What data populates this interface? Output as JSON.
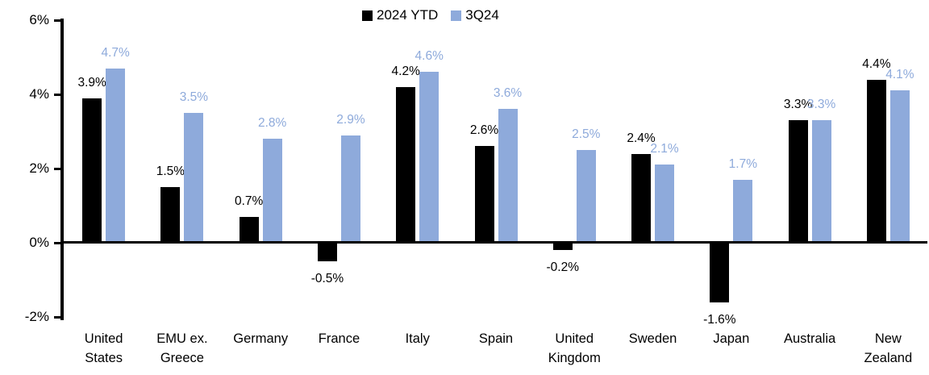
{
  "chart_data": {
    "type": "bar",
    "title": "",
    "xlabel": "",
    "ylabel": "",
    "categories": [
      "United States",
      "EMU ex. Greece",
      "Germany",
      "France",
      "Italy",
      "Spain",
      "United Kingdom",
      "Sweden",
      "Japan",
      "Australia",
      "New Zealand"
    ],
    "series": [
      {
        "name": "2024 YTD",
        "color": "#000000",
        "values": [
          3.9,
          1.5,
          0.7,
          -0.5,
          4.2,
          2.6,
          -0.2,
          2.4,
          -1.6,
          3.3,
          4.4
        ],
        "labels": [
          "3.9%",
          "1.5%",
          "0.7%",
          "-0.5%",
          "4.2%",
          "2.6%",
          "-0.2%",
          "2.4%",
          "-1.6%",
          "3.3%",
          "4.4%"
        ]
      },
      {
        "name": "3Q24",
        "color": "#8EAADB",
        "values": [
          4.7,
          3.5,
          2.8,
          2.9,
          4.6,
          3.6,
          2.5,
          2.1,
          1.7,
          3.3,
          4.1
        ],
        "labels": [
          "4.7%",
          "3.5%",
          "2.8%",
          "2.9%",
          "4.6%",
          "3.6%",
          "2.5%",
          "2.1%",
          "1.7%",
          "3.3%",
          "4.1%"
        ]
      }
    ],
    "ylim": [
      -2,
      6
    ],
    "yticks": [
      {
        "value": 6,
        "label": "6%"
      },
      {
        "value": 4,
        "label": "4%"
      },
      {
        "value": 2,
        "label": "2%"
      },
      {
        "value": 0,
        "label": "0%"
      },
      {
        "value": -2,
        "label": "-2%"
      }
    ],
    "grid": false,
    "legend_position": "top-center",
    "axis_color": "#000000"
  }
}
